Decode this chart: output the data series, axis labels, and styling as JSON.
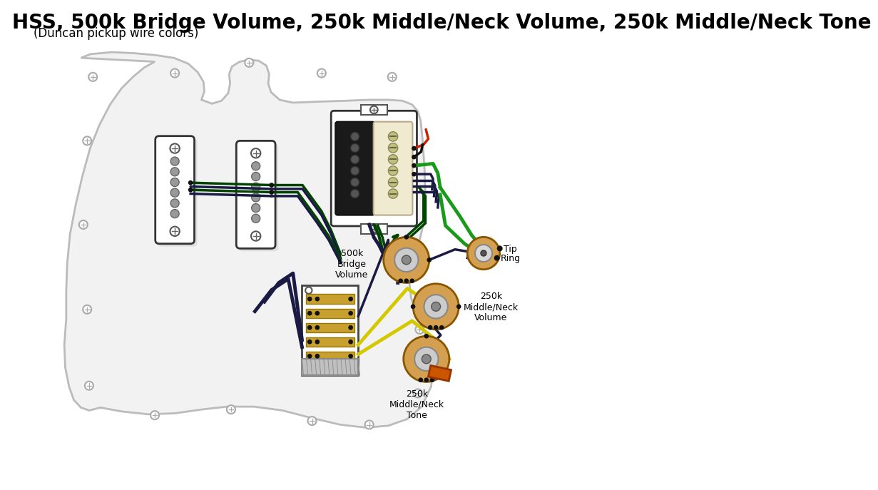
{
  "title": "HSS, 500k Bridge Volume, 250k Middle/Neck Volume, 250k Middle/Neck Tone",
  "subtitle": "(Duncan pickup wire colors)",
  "title_fontsize": 20,
  "subtitle_fontsize": 12,
  "bg_color": "#ffffff",
  "pickguard_fill": "#f2f2f2",
  "pickguard_edge": "#bbbbbb",
  "wire_black": "#111111",
  "wire_green": "#1a9a1a",
  "wire_dark_green": "#004400",
  "wire_red": "#cc2200",
  "wire_yellow": "#d4c800",
  "wire_navy": "#1a1a44",
  "wire_gray": "#888888",
  "pot_body": "#d4a050",
  "switch_contact": "#c8a030",
  "output_jack_color": "#d4a050",
  "hb_black": "#1a1a1a",
  "hb_cream": "#f0ead0",
  "hb_screw_color": "#c0c080",
  "label_color": "#000000",
  "label_fontsize": 9,
  "pole_color": "#999999",
  "screw_fill": "#ffffff"
}
